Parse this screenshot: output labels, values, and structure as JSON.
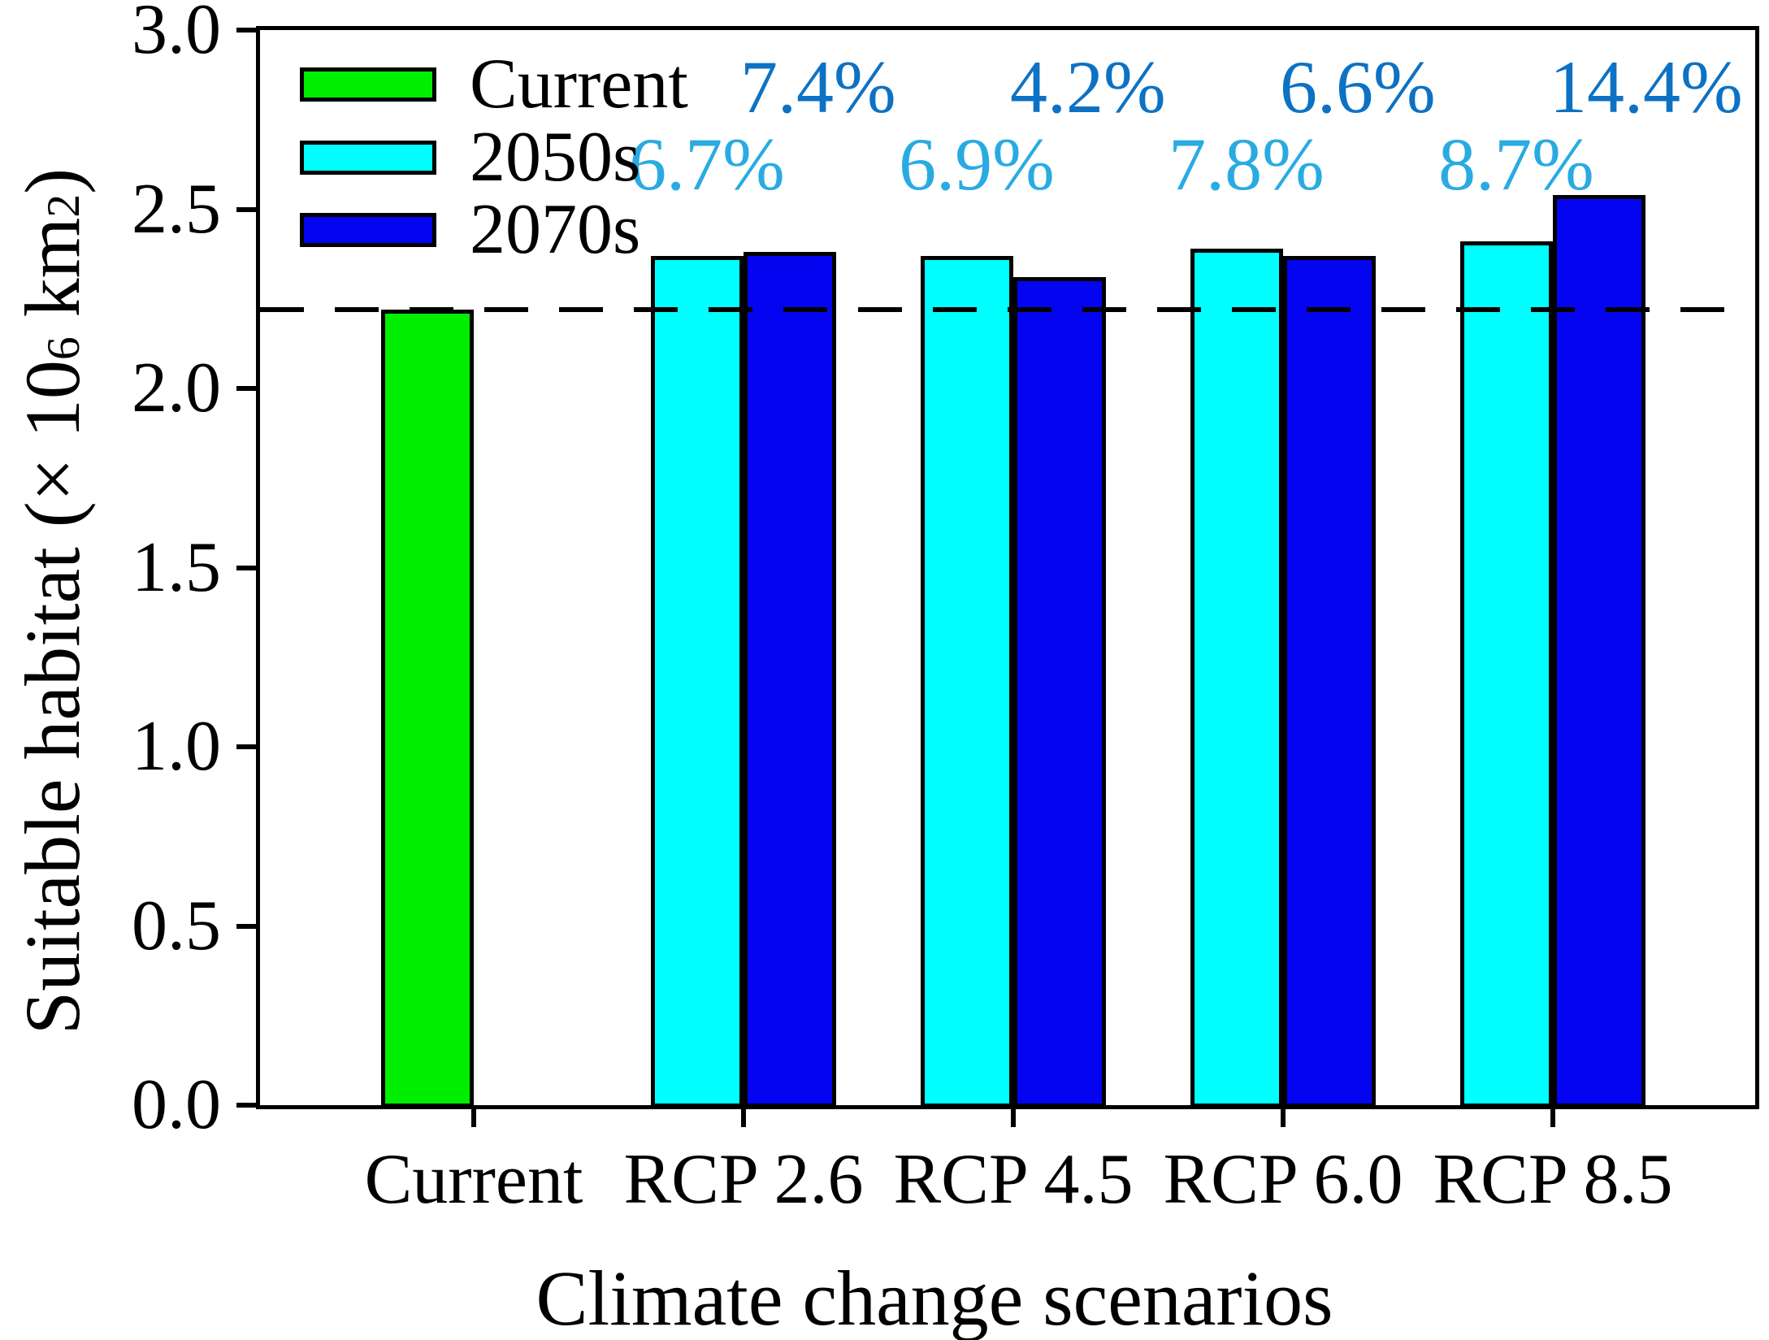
{
  "chart_data": {
    "type": "bar",
    "xlabel": "Climate change scenarios",
    "ylabel": "Suitable habitat (× 10⁶ km²)",
    "ylabel_parts": [
      {
        "text": "Suitable habitat (× 10",
        "sup": false
      },
      {
        "text": "6",
        "sup": true
      },
      {
        "text": " km",
        "sup": false
      },
      {
        "text": "2",
        "sup": true
      },
      {
        "text": ")",
        "sup": false
      }
    ],
    "ylim": [
      0.0,
      3.0
    ],
    "yticks": [
      "0.0",
      "0.5",
      "1.0",
      "1.5",
      "2.0",
      "2.5",
      "3.0"
    ],
    "grid": false,
    "legend_position": "top-left",
    "legend_entries": [
      "Current",
      "2050s",
      "2070s"
    ],
    "categories": [
      "Current",
      "RCP 2.6",
      "RCP 4.5",
      "RCP 6.0",
      "RCP 8.5"
    ],
    "series": [
      {
        "name": "Current",
        "slot": "left",
        "color": "#00ee00",
        "values": [
          2.22,
          null,
          null,
          null,
          null
        ]
      },
      {
        "name": "2050s",
        "slot": "left",
        "color": "#00ffff",
        "values": [
          null,
          2.37,
          2.37,
          2.39,
          2.41
        ],
        "pct_increase_labels": [
          null,
          "6.7%",
          "6.9%",
          "7.8%",
          "8.7%"
        ],
        "pct_label_color": "#29abe2"
      },
      {
        "name": "2070s",
        "slot": "right",
        "color": "#0404f0",
        "values": [
          null,
          2.38,
          2.31,
          2.37,
          2.54
        ],
        "pct_increase_labels": [
          null,
          "7.4%",
          "4.2%",
          "6.6%",
          "14.4%"
        ],
        "pct_label_color": "#0d72c4"
      }
    ],
    "baseline": {
      "value": 2.22,
      "style": "dashed",
      "color": "#000000"
    }
  }
}
